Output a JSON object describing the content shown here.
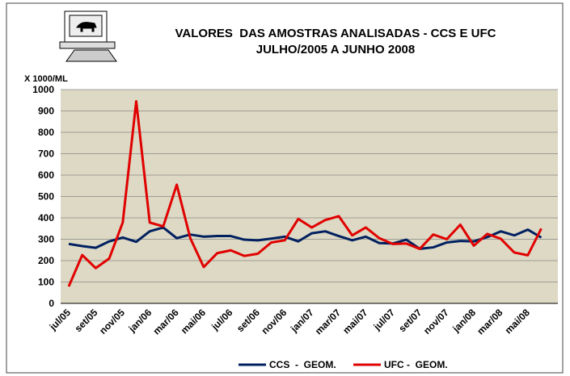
{
  "chart_data": {
    "type": "line",
    "title": "VALORES  DAS AMOSTRAS ANALISADAS - CCS E UFC",
    "subtitle": "JULHO/2005 A JUNHO 2008",
    "y_label": "X 1000/ML",
    "categories": [
      "jul/05",
      null,
      "set/05",
      null,
      "nov/05",
      null,
      "jan/06",
      null,
      "mar/06",
      null,
      "mai/06",
      null,
      "jul/06",
      null,
      "set/06",
      null,
      "nov/06",
      null,
      "jan/07",
      null,
      "mar/07",
      null,
      "mai/07",
      null,
      "jul/07",
      null,
      "set/07",
      null,
      "nov/07",
      null,
      "jan/08",
      null,
      "mar/08",
      null,
      "mai/08",
      null
    ],
    "series": [
      {
        "name": "CCS  -  GEOM.",
        "color": "#002060",
        "values": [
          278,
          268,
          260,
          290,
          308,
          288,
          337,
          355,
          305,
          322,
          312,
          315,
          315,
          298,
          295,
          303,
          312,
          290,
          328,
          337,
          315,
          295,
          312,
          282,
          280,
          298,
          255,
          262,
          285,
          292,
          290,
          310,
          337,
          318,
          345,
          308
        ]
      },
      {
        "name": "UFC -  GEOM.",
        "color": "#e00000",
        "values": [
          79,
          226,
          165,
          210,
          378,
          945,
          378,
          360,
          555,
          305,
          170,
          235,
          248,
          222,
          232,
          285,
          295,
          395,
          355,
          390,
          408,
          318,
          355,
          305,
          278,
          280,
          255,
          322,
          300,
          368,
          270,
          325,
          302,
          238,
          225,
          350
        ]
      }
    ],
    "ylim": [
      0,
      1000
    ],
    "yticks": [
      0,
      100,
      200,
      300,
      400,
      500,
      600,
      700,
      800,
      900,
      1000
    ],
    "grid": true,
    "legend": "bottom"
  }
}
